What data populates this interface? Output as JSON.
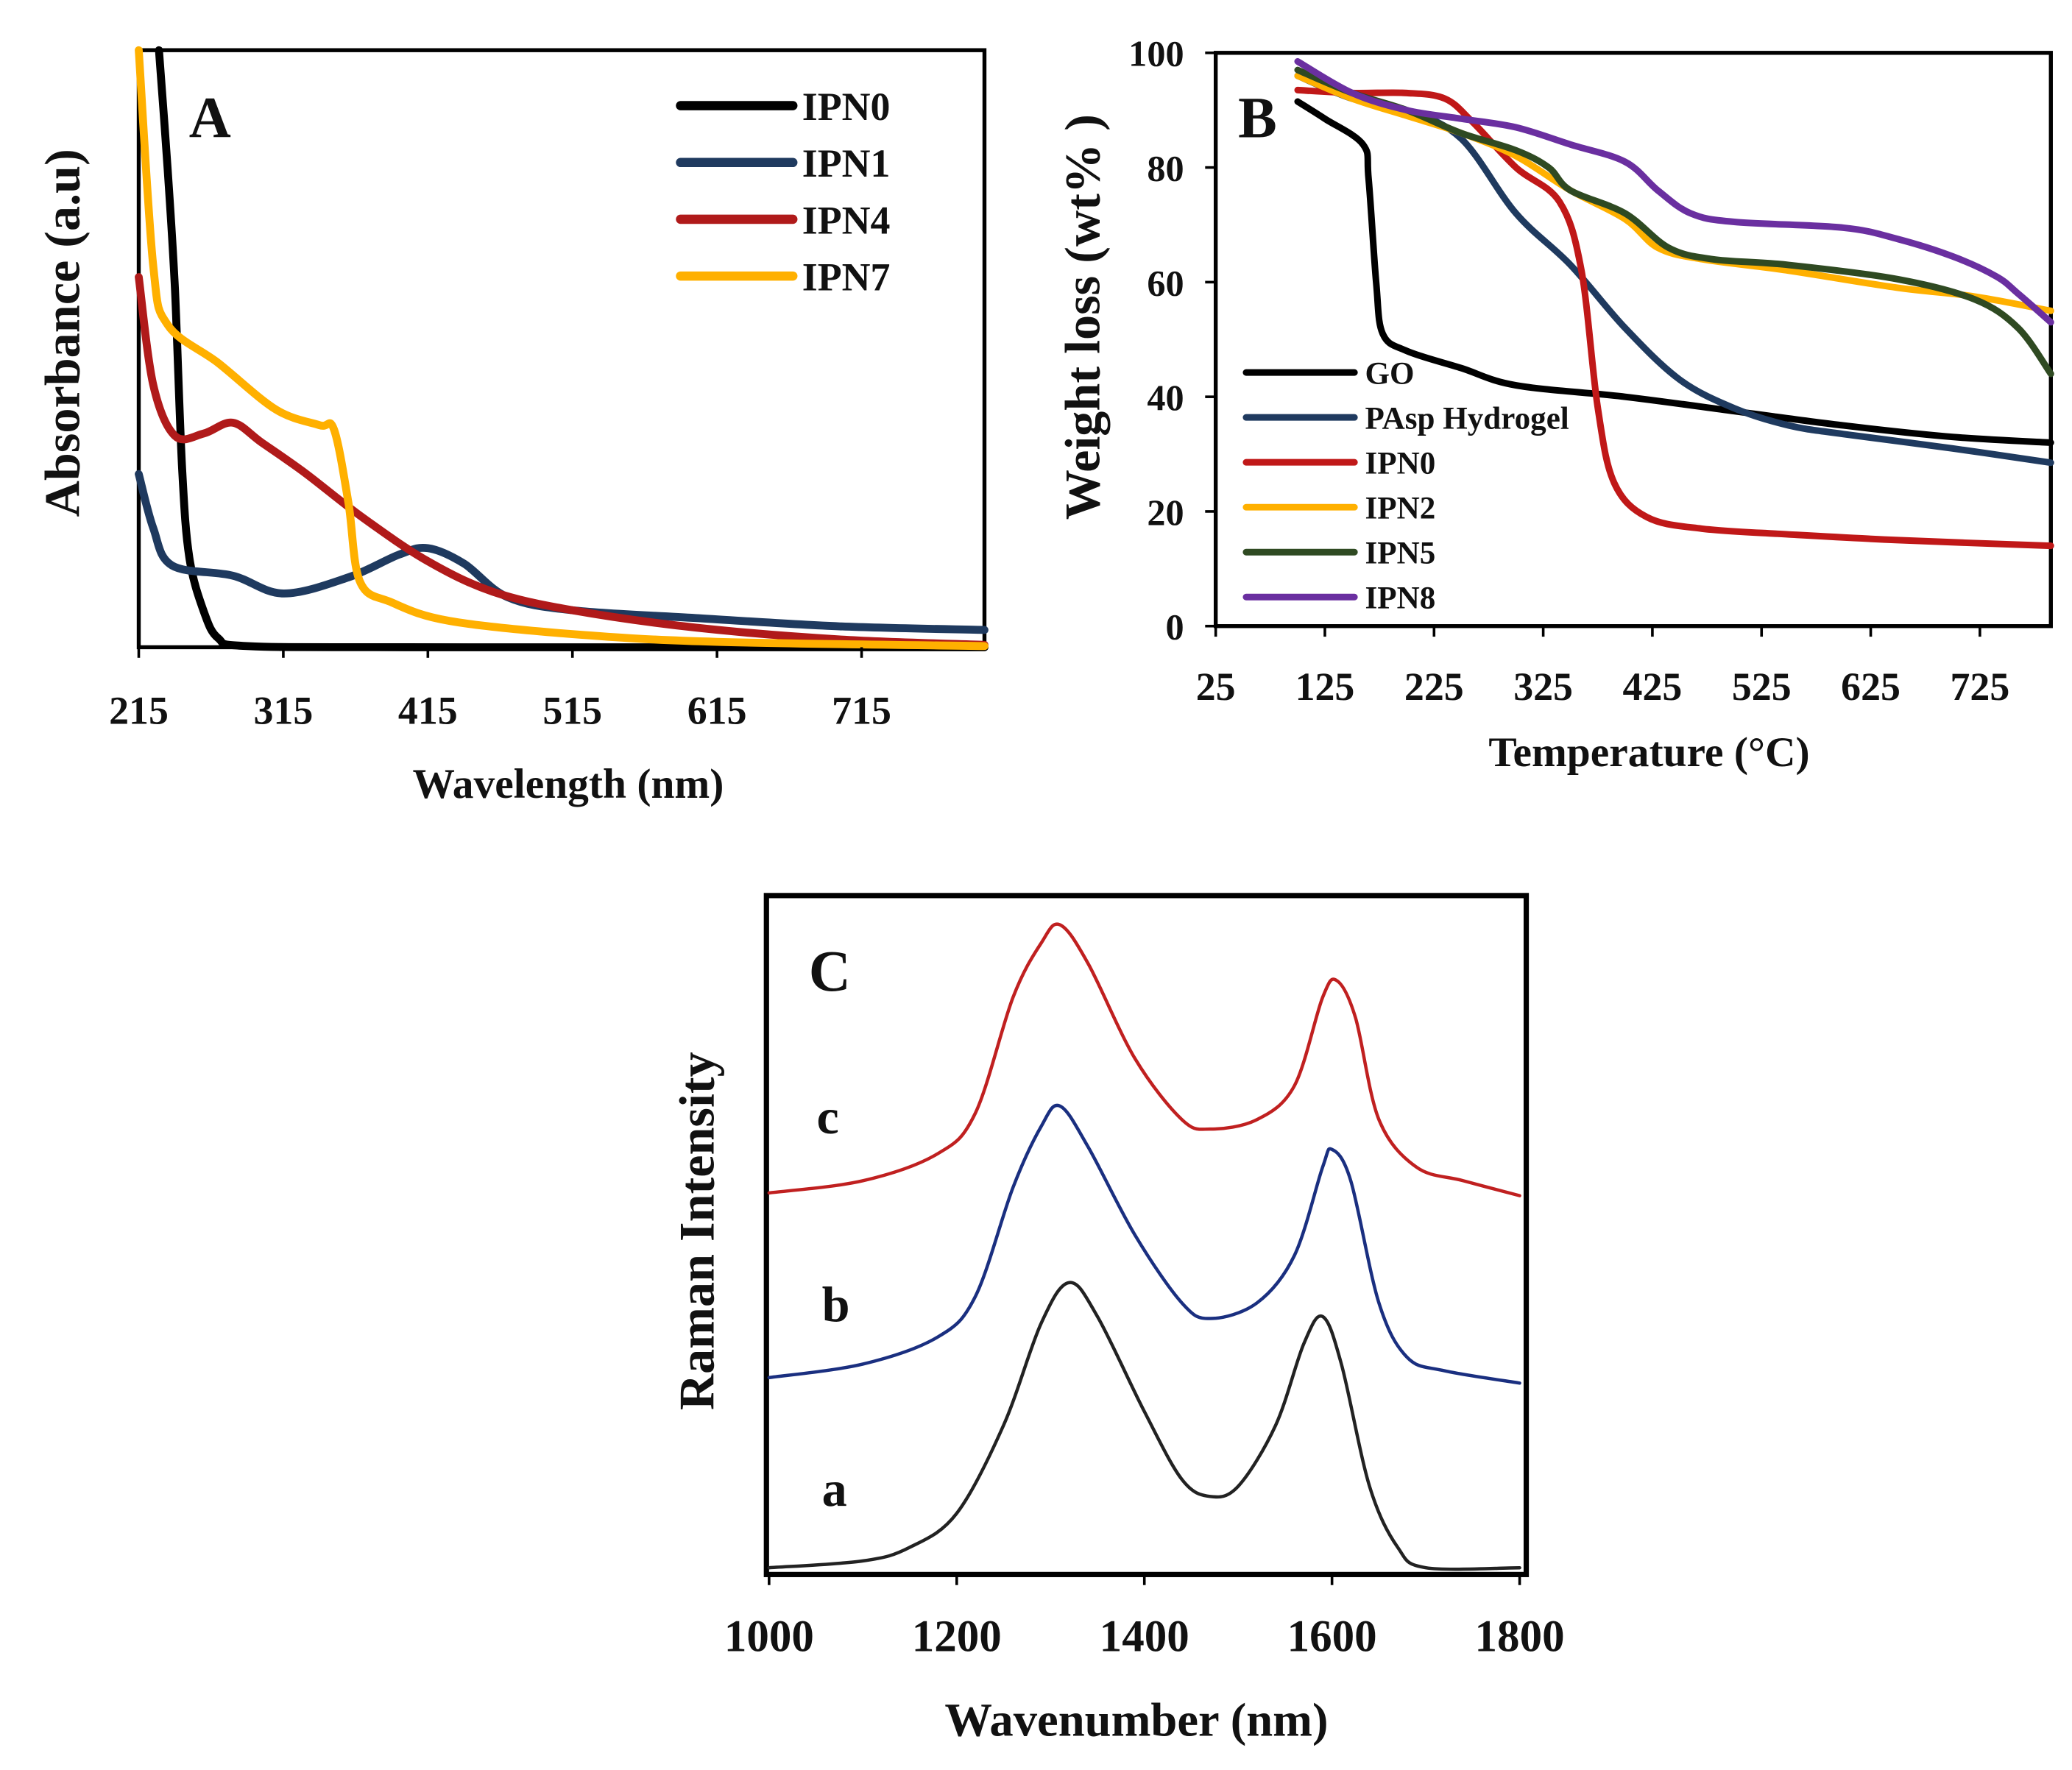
{
  "chart_data": [
    {
      "panel": "A",
      "type": "line",
      "xlabel": "Wavelength (nm)",
      "ylabel": "Absorbance (a.u)",
      "xlim": [
        215,
        800
      ],
      "ylim": [
        0,
        1
      ],
      "xticks": [
        "215",
        "315",
        "415",
        "515",
        "615",
        "715"
      ],
      "legend_position": "top-right",
      "series": [
        {
          "name": "IPN0",
          "color": "#000000",
          "points": [
            [
              229,
              1.0
            ],
            [
              235,
              0.8
            ],
            [
              240,
              0.6
            ],
            [
              245,
              0.3
            ],
            [
              250,
              0.15
            ],
            [
              260,
              0.06
            ],
            [
              270,
              0.015
            ],
            [
              290,
              0.002
            ],
            [
              400,
              0.0
            ],
            [
              800,
              0.0
            ]
          ]
        },
        {
          "name": "IPN1",
          "color": "#1f3a5f",
          "points": [
            [
              215,
              0.29
            ],
            [
              225,
              0.2
            ],
            [
              238,
              0.137
            ],
            [
              280,
              0.12
            ],
            [
              315,
              0.09
            ],
            [
              360,
              0.117
            ],
            [
              395,
              0.155
            ],
            [
              415,
              0.166
            ],
            [
              440,
              0.14
            ],
            [
              470,
              0.084
            ],
            [
              515,
              0.062
            ],
            [
              600,
              0.049
            ],
            [
              700,
              0.035
            ],
            [
              800,
              0.029
            ]
          ]
        },
        {
          "name": "IPN4",
          "color": "#b01a1a",
          "points": [
            [
              215,
              0.62
            ],
            [
              225,
              0.44
            ],
            [
              240,
              0.354
            ],
            [
              260,
              0.358
            ],
            [
              280,
              0.376
            ],
            [
              300,
              0.343
            ],
            [
              330,
              0.292
            ],
            [
              370,
              0.217
            ],
            [
              415,
              0.144
            ],
            [
              460,
              0.093
            ],
            [
              515,
              0.062
            ],
            [
              600,
              0.033
            ],
            [
              700,
              0.013
            ],
            [
              800,
              0.004
            ]
          ]
        },
        {
          "name": "IPN7",
          "color": "#ffb000",
          "points": [
            [
              215,
              1.0
            ],
            [
              225,
              0.64
            ],
            [
              235,
              0.54
            ],
            [
              270,
              0.476
            ],
            [
              310,
              0.398
            ],
            [
              340,
              0.372
            ],
            [
              350,
              0.365
            ],
            [
              360,
              0.243
            ],
            [
              368,
              0.11
            ],
            [
              390,
              0.075
            ],
            [
              430,
              0.044
            ],
            [
              515,
              0.022
            ],
            [
              615,
              0.009
            ],
            [
              800,
              0.002
            ]
          ]
        }
      ]
    },
    {
      "panel": "B",
      "type": "line",
      "xlabel": "Temperature (°C)",
      "ylabel": "Weight loss (wt% )",
      "xlim": [
        25,
        790
      ],
      "ylim": [
        0,
        100
      ],
      "xticks": [
        "25",
        "125",
        "225",
        "325",
        "425",
        "525",
        "625",
        "725"
      ],
      "yticks": [
        "0",
        "20",
        "40",
        "60",
        "80",
        "100"
      ],
      "legend_position": "bottom-left",
      "series": [
        {
          "name": "GO",
          "color": "#000000",
          "points": [
            [
              100,
              91.5
            ],
            [
              125,
              88.5
            ],
            [
              160,
              84
            ],
            [
              165,
              78
            ],
            [
              172,
              60
            ],
            [
              178,
              51
            ],
            [
              200,
              48
            ],
            [
              250,
              45
            ],
            [
              300,
              42
            ],
            [
              400,
              40
            ],
            [
              500,
              37.5
            ],
            [
              600,
              35
            ],
            [
              700,
              33
            ],
            [
              790,
              32
            ]
          ]
        },
        {
          "name": "PAsp Hydrogel",
          "color": "#1f3a5f",
          "points": [
            [
              100,
              96
            ],
            [
              150,
              92
            ],
            [
              200,
              90
            ],
            [
              250,
              85
            ],
            [
              300,
              72
            ],
            [
              350,
              63
            ],
            [
              400,
              52
            ],
            [
              450,
              43
            ],
            [
              500,
              38
            ],
            [
              550,
              35
            ],
            [
              600,
              33.5
            ],
            [
              700,
              31
            ],
            [
              790,
              28.5
            ]
          ]
        },
        {
          "name": "IPN0",
          "color": "#c01818",
          "points": [
            [
              100,
              93.5
            ],
            [
              150,
              93
            ],
            [
              200,
              93
            ],
            [
              235,
              92
            ],
            [
              260,
              88
            ],
            [
              300,
              80
            ],
            [
              340,
              74
            ],
            [
              360,
              62
            ],
            [
              375,
              38
            ],
            [
              390,
              25
            ],
            [
              420,
              19
            ],
            [
              470,
              17
            ],
            [
              550,
              16
            ],
            [
              650,
              15
            ],
            [
              790,
              14
            ]
          ]
        },
        {
          "name": "IPN2",
          "color": "#ffb000",
          "points": [
            [
              100,
              96
            ],
            [
              150,
              92
            ],
            [
              200,
              89
            ],
            [
              250,
              86
            ],
            [
              300,
              82
            ],
            [
              350,
              76
            ],
            [
              400,
              71
            ],
            [
              430,
              66
            ],
            [
              470,
              64
            ],
            [
              550,
              62
            ],
            [
              650,
              59
            ],
            [
              720,
              57.5
            ],
            [
              790,
              55
            ]
          ]
        },
        {
          "name": "IPN5",
          "color": "#2f4a22",
          "points": [
            [
              100,
              97
            ],
            [
              150,
              93
            ],
            [
              200,
              90
            ],
            [
              250,
              86
            ],
            [
              300,
              83
            ],
            [
              330,
              80
            ],
            [
              350,
              76
            ],
            [
              400,
              72
            ],
            [
              440,
              66
            ],
            [
              480,
              64
            ],
            [
              550,
              63
            ],
            [
              650,
              60.5
            ],
            [
              720,
              57
            ],
            [
              760,
              52
            ],
            [
              790,
              44
            ]
          ]
        },
        {
          "name": "IPN8",
          "color": "#6a2fa0",
          "points": [
            [
              100,
              98.5
            ],
            [
              150,
              93
            ],
            [
              200,
              90
            ],
            [
              250,
              88.5
            ],
            [
              300,
              87
            ],
            [
              350,
              84
            ],
            [
              400,
              81
            ],
            [
              430,
              76
            ],
            [
              460,
              72
            ],
            [
              500,
              70.5
            ],
            [
              600,
              69.5
            ],
            [
              650,
              67.5
            ],
            [
              700,
              64.5
            ],
            [
              740,
              61
            ],
            [
              760,
              58
            ],
            [
              790,
              53
            ]
          ]
        }
      ]
    },
    {
      "panel": "C",
      "type": "line",
      "xlabel": "Wavenumber (nm)",
      "ylabel": "Raman Intensity",
      "xlim": [
        1000,
        1800
      ],
      "ylim": [
        0,
        1
      ],
      "xticks": [
        "1000",
        "1200",
        "1400",
        "1600",
        "1800"
      ],
      "series": [
        {
          "name": "a",
          "color": "#222222",
          "points": [
            [
              1000,
              0.01
            ],
            [
              1100,
              0.02
            ],
            [
              1150,
              0.04
            ],
            [
              1200,
              0.09
            ],
            [
              1250,
              0.22
            ],
            [
              1290,
              0.37
            ],
            [
              1320,
              0.43
            ],
            [
              1350,
              0.38
            ],
            [
              1400,
              0.24
            ],
            [
              1440,
              0.14
            ],
            [
              1470,
              0.115
            ],
            [
              1500,
              0.13
            ],
            [
              1540,
              0.22
            ],
            [
              1570,
              0.34
            ],
            [
              1590,
              0.38
            ],
            [
              1610,
              0.31
            ],
            [
              1640,
              0.13
            ],
            [
              1670,
              0.04
            ],
            [
              1700,
              0.01
            ],
            [
              1800,
              0.01
            ]
          ]
        },
        {
          "name": "b",
          "color": "#1a2f80",
          "points": [
            [
              1000,
              0.29
            ],
            [
              1100,
              0.31
            ],
            [
              1180,
              0.35
            ],
            [
              1220,
              0.41
            ],
            [
              1260,
              0.57
            ],
            [
              1290,
              0.66
            ],
            [
              1310,
              0.69
            ],
            [
              1340,
              0.63
            ],
            [
              1390,
              0.5
            ],
            [
              1440,
              0.4
            ],
            [
              1470,
              0.377
            ],
            [
              1520,
              0.4
            ],
            [
              1560,
              0.47
            ],
            [
              1590,
              0.6
            ],
            [
              1600,
              0.626
            ],
            [
              1620,
              0.58
            ],
            [
              1650,
              0.4
            ],
            [
              1680,
              0.32
            ],
            [
              1720,
              0.3
            ],
            [
              1800,
              0.282
            ]
          ]
        },
        {
          "name": "c",
          "color": "#c02020",
          "points": [
            [
              1000,
              0.562
            ],
            [
              1100,
              0.58
            ],
            [
              1180,
              0.62
            ],
            [
              1220,
              0.68
            ],
            [
              1260,
              0.85
            ],
            [
              1290,
              0.93
            ],
            [
              1310,
              0.957
            ],
            [
              1340,
              0.9
            ],
            [
              1390,
              0.76
            ],
            [
              1440,
              0.67
            ],
            [
              1470,
              0.656
            ],
            [
              1520,
              0.67
            ],
            [
              1560,
              0.72
            ],
            [
              1590,
              0.85
            ],
            [
              1605,
              0.875
            ],
            [
              1625,
              0.82
            ],
            [
              1650,
              0.67
            ],
            [
              1690,
              0.6
            ],
            [
              1740,
              0.58
            ],
            [
              1800,
              0.558
            ]
          ]
        }
      ]
    }
  ]
}
